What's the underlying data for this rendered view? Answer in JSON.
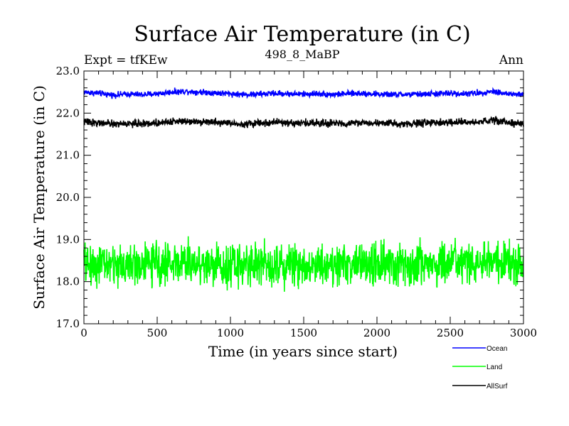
{
  "chart_data": {
    "type": "line",
    "title": "Surface Air Temperature (in C)",
    "subtitle": "498_8_MaBP",
    "left_label": "Expt = tfKEw",
    "right_label": "Ann",
    "xlabel": "Time (in years since start)",
    "ylabel": "Surface Air Temperature (in C)",
    "xlim": [
      0,
      3000
    ],
    "ylim": [
      17.0,
      23.0
    ],
    "x_ticks": [
      0,
      500,
      1000,
      1500,
      2000,
      2500,
      3000
    ],
    "x_tick_labels": [
      "0",
      "500",
      "1000",
      "1500",
      "2000",
      "2500",
      "3000"
    ],
    "y_ticks": [
      17.0,
      18.0,
      19.0,
      20.0,
      21.0,
      22.0,
      23.0
    ],
    "y_tick_labels": [
      "17.0",
      "18.0",
      "19.0",
      "20.0",
      "21.0",
      "22.0",
      "23.0"
    ],
    "grid": false,
    "legend_position": "bottom-right",
    "series": [
      {
        "name": "Ocean",
        "color": "#0000ff",
        "x": [
          0,
          100,
          200,
          300,
          400,
          500,
          600,
          700,
          800,
          900,
          1000,
          1100,
          1200,
          1300,
          1400,
          1500,
          1600,
          1700,
          1800,
          1900,
          2000,
          2100,
          2200,
          2300,
          2400,
          2500,
          2600,
          2700,
          2800,
          2900,
          3000
        ],
        "values": [
          22.5,
          22.47,
          22.43,
          22.45,
          22.44,
          22.46,
          22.5,
          22.52,
          22.5,
          22.48,
          22.46,
          22.44,
          22.45,
          22.47,
          22.46,
          22.45,
          22.46,
          22.44,
          22.46,
          22.47,
          22.45,
          22.44,
          22.44,
          22.45,
          22.46,
          22.47,
          22.46,
          22.48,
          22.52,
          22.45,
          22.44
        ],
        "noise": 0.05
      },
      {
        "name": "Land",
        "color": "#00ff00",
        "x": [
          0,
          100,
          200,
          300,
          400,
          500,
          600,
          700,
          800,
          900,
          1000,
          1100,
          1200,
          1300,
          1400,
          1500,
          1600,
          1700,
          1800,
          1900,
          2000,
          2100,
          2200,
          2300,
          2400,
          2500,
          2600,
          2700,
          2800,
          2900,
          3000
        ],
        "values": [
          18.4,
          18.42,
          18.38,
          18.4,
          18.41,
          18.42,
          18.45,
          18.44,
          18.43,
          18.4,
          18.38,
          18.41,
          18.43,
          18.42,
          18.4,
          18.39,
          18.41,
          18.42,
          18.4,
          18.41,
          18.4,
          18.39,
          18.4,
          18.41,
          18.42,
          18.44,
          18.42,
          18.43,
          18.45,
          18.41,
          18.4
        ],
        "noise": 0.35
      },
      {
        "name": "AllSurf",
        "color": "#000000",
        "x": [
          0,
          100,
          200,
          300,
          400,
          500,
          600,
          700,
          800,
          900,
          1000,
          1100,
          1200,
          1300,
          1400,
          1500,
          1600,
          1700,
          1800,
          1900,
          2000,
          2100,
          2200,
          2300,
          2400,
          2500,
          2600,
          2700,
          2800,
          2900,
          3000
        ],
        "values": [
          21.8,
          21.77,
          21.74,
          21.75,
          21.75,
          21.77,
          21.8,
          21.82,
          21.8,
          21.79,
          21.76,
          21.74,
          21.76,
          21.78,
          21.77,
          21.76,
          21.77,
          21.75,
          21.76,
          21.77,
          21.76,
          21.75,
          21.75,
          21.76,
          21.77,
          21.78,
          21.77,
          21.79,
          21.83,
          21.76,
          21.75
        ],
        "noise": 0.06
      }
    ]
  }
}
